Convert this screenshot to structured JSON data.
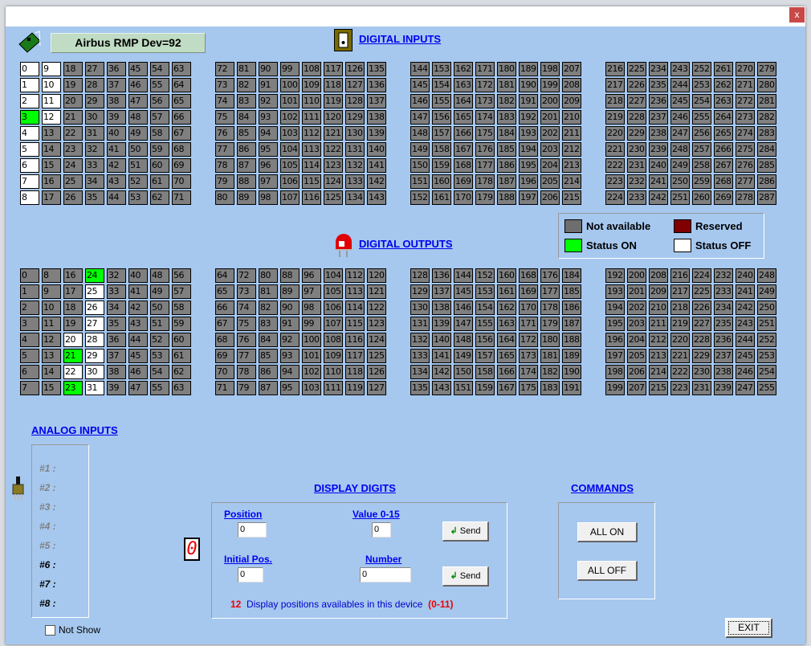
{
  "window": {
    "close_label": "x"
  },
  "header": {
    "device_title": "Airbus RMP Dev=92"
  },
  "digital_inputs": {
    "title": "DIGITAL INPUTS",
    "rows": 9,
    "blocks": [
      {
        "start": 0,
        "count": 72
      },
      {
        "start": 72,
        "count": 72
      },
      {
        "start": 144,
        "count": 72
      },
      {
        "start": 216,
        "count": 72
      }
    ],
    "status_on": [
      3
    ],
    "status_off": [
      0,
      1,
      2,
      4,
      5,
      6,
      7,
      8,
      9,
      10,
      11,
      12
    ]
  },
  "digital_outputs": {
    "title": "DIGITAL OUTPUTS",
    "rows": 8,
    "blocks": [
      {
        "start": 0,
        "count": 64
      },
      {
        "start": 64,
        "count": 64
      },
      {
        "start": 128,
        "count": 64
      },
      {
        "start": 192,
        "count": 64
      }
    ],
    "status_on": [
      21,
      23,
      24
    ],
    "status_off": [
      20,
      22,
      25,
      26,
      27,
      28,
      29,
      30,
      31
    ]
  },
  "legend": {
    "not_available": "Not available",
    "reserved": "Reserved",
    "status_on": "Status ON",
    "status_off": "Status OFF",
    "colors": {
      "not_available": "#7f7f7f",
      "reserved": "#800000",
      "status_on": "#00ff00",
      "status_off": "#ffffff"
    }
  },
  "analog_inputs": {
    "title": "ANALOG INPUTS",
    "items": [
      {
        "label": "#1 :",
        "enabled": false
      },
      {
        "label": "#2 :",
        "enabled": false
      },
      {
        "label": "#3 :",
        "enabled": false
      },
      {
        "label": "#4 :",
        "enabled": false
      },
      {
        "label": "#5 :",
        "enabled": false
      },
      {
        "label": "#6 :",
        "enabled": true
      },
      {
        "label": "#7 :",
        "enabled": true
      },
      {
        "label": "#8 :",
        "enabled": true
      }
    ],
    "not_show_label": "Not Show",
    "not_show_checked": false
  },
  "display_digits": {
    "title": "DISPLAY DIGITS",
    "digit_preview": "0",
    "position_label": "Position",
    "position_value": "0",
    "value_label": "Value 0-15",
    "value_value": "0",
    "initial_pos_label": "Initial Pos.",
    "initial_pos_value": "0",
    "number_label": "Number",
    "number_value": "0",
    "send_label": "Send",
    "positions_count": "12",
    "positions_text": "Display positions availables in this device",
    "positions_range": "(0-11)"
  },
  "commands": {
    "title": "COMMANDS",
    "all_on": "ALL ON",
    "all_off": "ALL OFF"
  },
  "exit_label": "EXIT"
}
